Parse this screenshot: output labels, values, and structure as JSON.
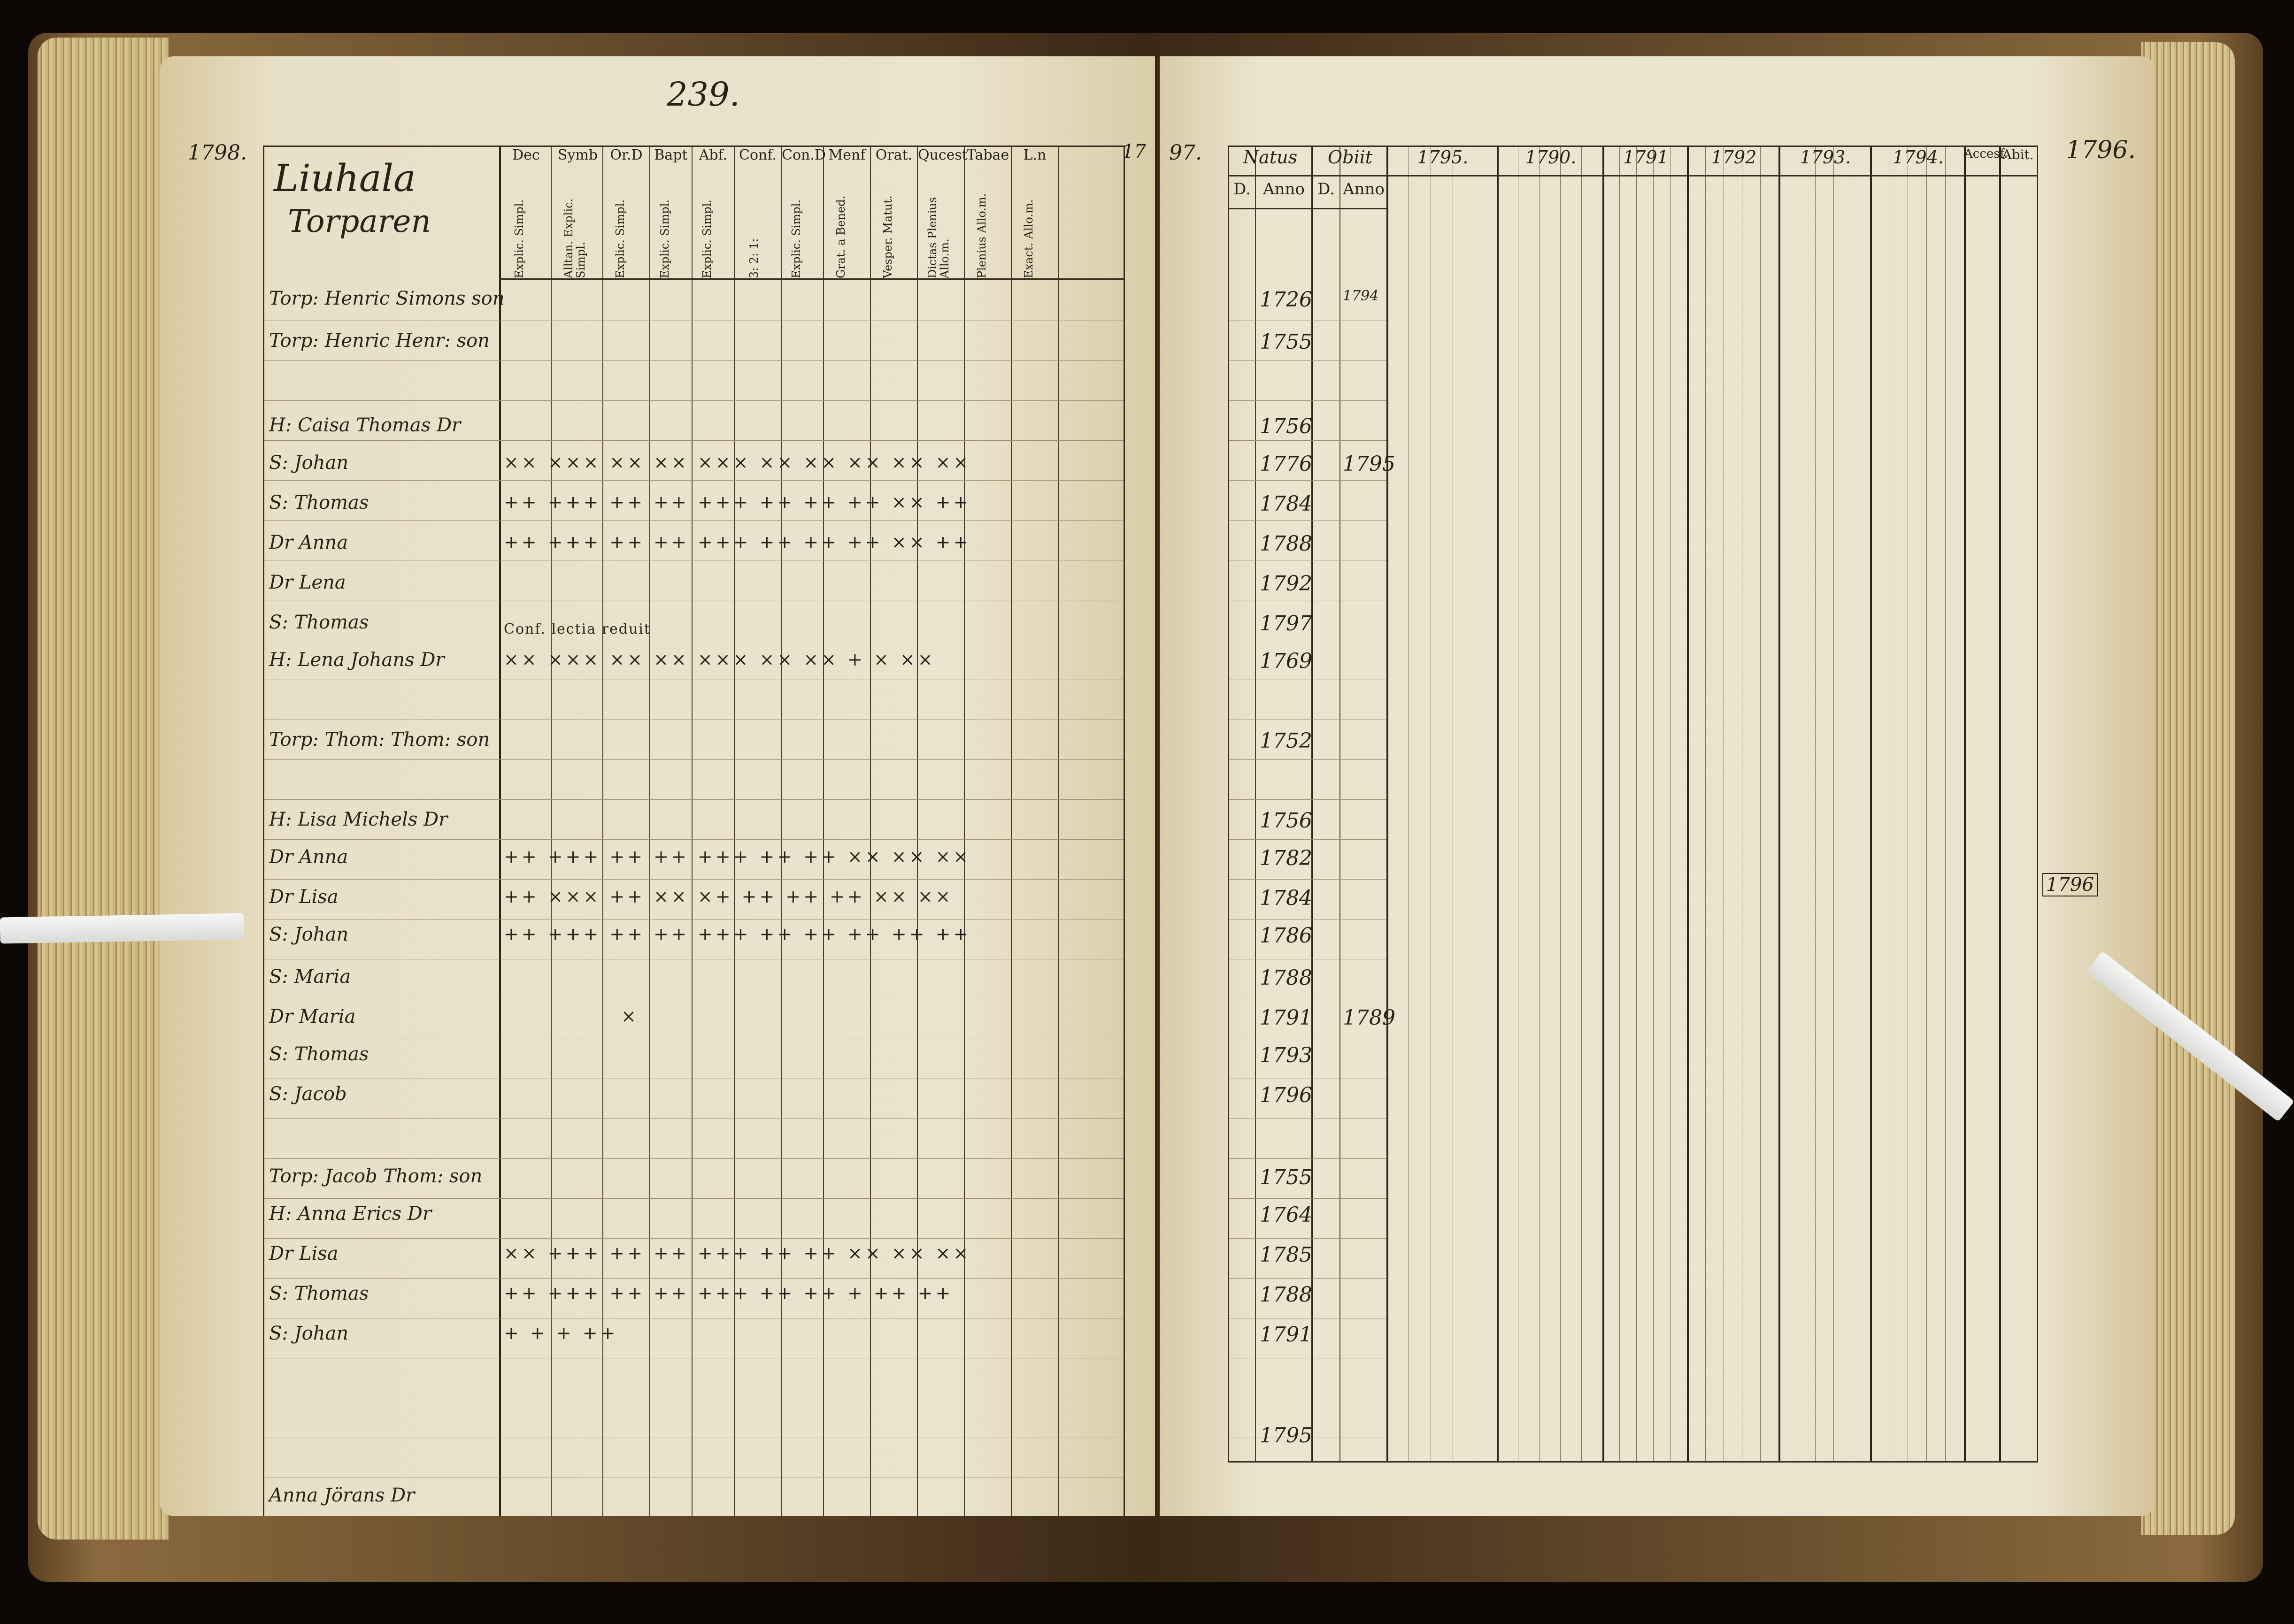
{
  "left_page": {
    "page_number": "239.",
    "year_mark": "1798.",
    "title_line1": "Liuhala",
    "title_line2": "Torparen",
    "corner_right": "17",
    "column_heads": [
      "Dec",
      "Symb",
      "Or.D",
      "Bapt",
      "Abf.",
      "Conf.",
      "Con.D",
      "Menf",
      "Orat.",
      "Qucest",
      "Tabae",
      "L.n"
    ],
    "column_subs": [
      "Explic. Simpl.",
      "Alltan. Explic. Simpl.",
      "Explic. Simpl.",
      "Explic. Simpl.",
      "Explic. Simpl.",
      "3: 2: 1:",
      "Explic. Simpl.",
      "Grat. a Bened.",
      "Vesper. Matut.",
      "Dictas Plenius Allo.m.",
      "Plenius Allo.m.",
      "Exact. Allo.m."
    ],
    "rows": [
      {
        "name": "Torp: Henric Simons son",
        "marks": ""
      },
      {
        "name": "Torp: Henric Henr: son",
        "marks": ""
      },
      {
        "name": "H: Caisa Thomas Dr",
        "marks": ""
      },
      {
        "name": "S: Johan",
        "marks": "×× ××× ×× ×× ××× ×× ×× ×× ×× ××"
      },
      {
        "name": "S: Thomas",
        "marks": "++ +++ ++ ++ +++ ++ ++ ++ ×× ++"
      },
      {
        "name": "Dr Anna",
        "marks": "++ +++ ++ ++ +++ ++ ++ ++ ×× ++"
      },
      {
        "name": "Dr Lena",
        "marks": ""
      },
      {
        "name": "S: Thomas",
        "marks": "Conf. lectia reduit"
      },
      {
        "name": "H: Lena Johans Dr",
        "marks": "×× ××× ×× ×× ××× ×× ×× + × ××"
      },
      {
        "name": "Torp: Thom: Thom: son",
        "marks": ""
      },
      {
        "name": "H: Lisa Michels Dr",
        "marks": ""
      },
      {
        "name": "Dr Anna",
        "marks": "++ +++ ++ ++ +++ ++ ++ ×× ×× ××"
      },
      {
        "name": "Dr Lisa",
        "marks": "++ ××× ++ ×× ×+ ++ ++ ++ ×× ××"
      },
      {
        "name": "S: Johan",
        "marks": "++ +++ ++ ++ +++ ++ ++ ++ ++ ++"
      },
      {
        "name": "S: Maria",
        "marks": ""
      },
      {
        "name": "Dr Maria",
        "marks": "×"
      },
      {
        "name": "S: Thomas",
        "marks": ""
      },
      {
        "name": "S: Jacob",
        "marks": ""
      },
      {
        "name": "Torp: Jacob Thom: son",
        "marks": ""
      },
      {
        "name": "H: Anna Erics Dr",
        "marks": ""
      },
      {
        "name": "Dr Lisa",
        "marks": "×× +++ ++ ++ +++ ++ ++ ×× ×× ××"
      },
      {
        "name": "S: Thomas",
        "marks": "++ +++ ++ ++ +++ ++ ++ + ++ ++"
      },
      {
        "name": "S: Johan",
        "marks": "+ + + ++"
      },
      {
        "name": "Anna Jörans Dr",
        "marks": ""
      }
    ]
  },
  "right_page": {
    "corner_left": "97.",
    "year_mark": "1796.",
    "headers": [
      "Natus",
      "Obiit",
      "1795.",
      "1790.",
      "1791",
      "1792",
      "1793.",
      "1794.",
      "Accesf.",
      "Abit."
    ],
    "sub_headers": [
      "D.",
      "Anno",
      "D.",
      "Anno"
    ],
    "birth_years": [
      "1726",
      "1755",
      "1756",
      "1776",
      "1784",
      "1788",
      "1792",
      "1797",
      "1769",
      "1752",
      "1756",
      "1782",
      "1784",
      "1786",
      "1788",
      "1791",
      "1793",
      "1796",
      "1755",
      "1764",
      "1785",
      "1788",
      "1791",
      "1795"
    ],
    "death_years": [
      "1794",
      "1795",
      "1789"
    ],
    "margin_year": "1796"
  }
}
